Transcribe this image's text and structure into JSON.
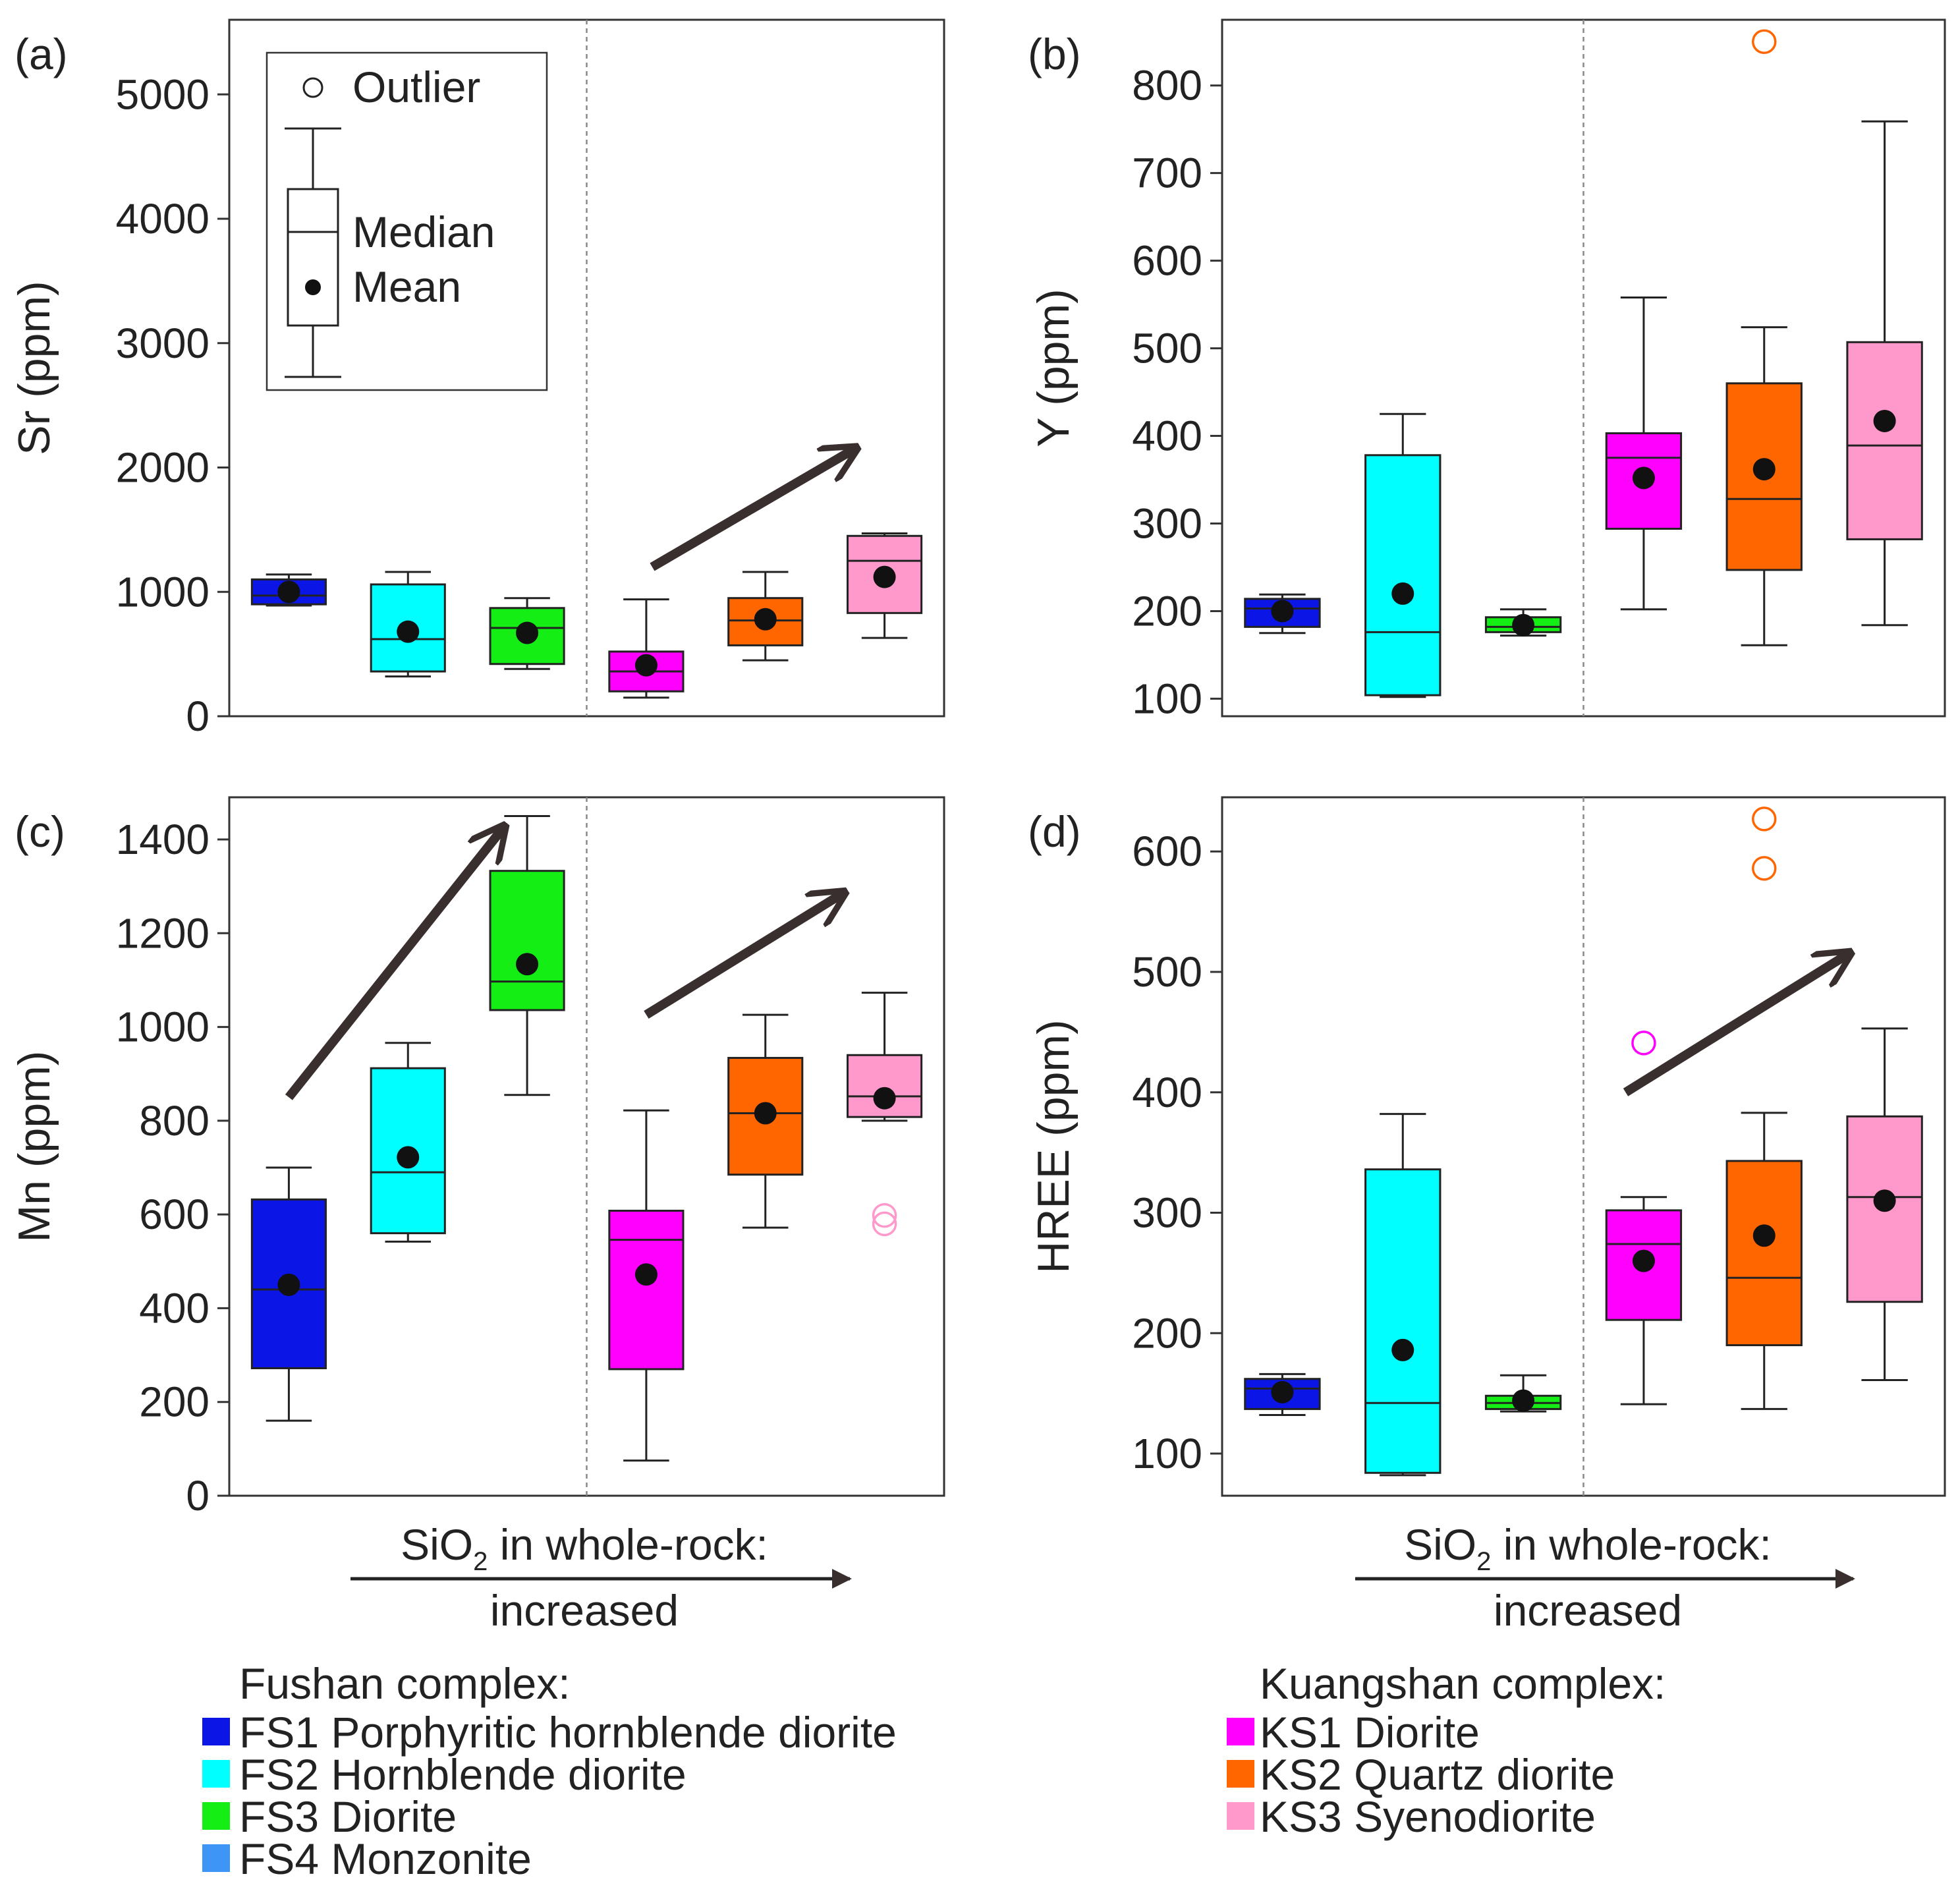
{
  "panels": [
    {
      "label": "(a)",
      "ylabel": "Sr (ppm)",
      "ylim": [
        0,
        5600
      ],
      "yticks": [
        0,
        1000,
        2000,
        3000,
        4000,
        5000
      ],
      "show_legend": true,
      "boxes": [
        {
          "group": "FS1",
          "min": 890,
          "q1": 900,
          "median": 970,
          "q3": 1100,
          "max": 1140,
          "mean": 1000
        },
        {
          "group": "FS2",
          "min": 320,
          "q1": 360,
          "median": 620,
          "q3": 1060,
          "max": 1160,
          "mean": 680
        },
        {
          "group": "FS3",
          "min": 380,
          "q1": 420,
          "median": 710,
          "q3": 870,
          "max": 950,
          "mean": 670
        },
        {
          "group": "KS1",
          "min": 150,
          "q1": 200,
          "median": 360,
          "q3": 520,
          "max": 940,
          "mean": 410
        },
        {
          "group": "KS2",
          "min": 450,
          "q1": 570,
          "median": 770,
          "q3": 950,
          "max": 1160,
          "mean": 780
        },
        {
          "group": "KS3",
          "min": 630,
          "q1": 830,
          "median": 1250,
          "q3": 1450,
          "max": 1470,
          "mean": 1120
        }
      ],
      "outliers": [],
      "trend_arrows": [
        {
          "from": [
            3.55,
            1200
          ],
          "to": [
            5.25,
            2150
          ]
        }
      ]
    },
    {
      "label": "(b)",
      "ylabel": "Y (ppm)",
      "ylim": [
        80,
        875
      ],
      "yticks": [
        100,
        200,
        300,
        400,
        500,
        600,
        700,
        800
      ],
      "show_legend": false,
      "boxes": [
        {
          "group": "FS1",
          "min": 175,
          "q1": 182,
          "median": 203,
          "q3": 214,
          "max": 219,
          "mean": 200
        },
        {
          "group": "FS2",
          "min": 102,
          "q1": 104,
          "median": 176,
          "q3": 378,
          "max": 425,
          "mean": 220
        },
        {
          "group": "FS3",
          "min": 172,
          "q1": 176,
          "median": 182,
          "q3": 193,
          "max": 202,
          "mean": 184
        },
        {
          "group": "KS1",
          "min": 202,
          "q1": 294,
          "median": 375,
          "q3": 403,
          "max": 558,
          "mean": 352
        },
        {
          "group": "KS2",
          "min": 161,
          "q1": 247,
          "median": 328,
          "q3": 460,
          "max": 524,
          "mean": 362
        },
        {
          "group": "KS3",
          "min": 184,
          "q1": 282,
          "median": 389,
          "q3": 507,
          "max": 759,
          "mean": 417
        }
      ],
      "outliers": [
        {
          "group": "KS2",
          "value": 850
        }
      ],
      "trend_arrows": []
    },
    {
      "label": "(c)",
      "ylabel": "Mn (ppm)",
      "ylim": [
        0,
        1490
      ],
      "yticks": [
        0,
        200,
        400,
        600,
        800,
        1000,
        1200,
        1400
      ],
      "show_legend": false,
      "boxes": [
        {
          "group": "FS1",
          "min": 160,
          "q1": 272,
          "median": 440,
          "q3": 632,
          "max": 700,
          "mean": 450
        },
        {
          "group": "FS2",
          "min": 542,
          "q1": 560,
          "median": 690,
          "q3": 912,
          "max": 966,
          "mean": 722
        },
        {
          "group": "FS3",
          "min": 855,
          "q1": 1036,
          "median": 1097,
          "q3": 1333,
          "max": 1450,
          "mean": 1134
        },
        {
          "group": "KS1",
          "min": 75,
          "q1": 270,
          "median": 546,
          "q3": 608,
          "max": 822,
          "mean": 472
        },
        {
          "group": "KS2",
          "min": 572,
          "q1": 685,
          "median": 816,
          "q3": 934,
          "max": 1026,
          "mean": 816
        },
        {
          "group": "KS3",
          "min": 800,
          "q1": 808,
          "median": 852,
          "q3": 940,
          "max": 1073,
          "mean": 848
        }
      ],
      "outliers": [
        {
          "group": "KS3",
          "value": 598
        },
        {
          "group": "KS3",
          "value": 580
        }
      ],
      "trend_arrows": [
        {
          "from": [
            0.5,
            850
          ],
          "to": [
            2.3,
            1425
          ]
        },
        {
          "from": [
            3.5,
            1026
          ],
          "to": [
            5.15,
            1285
          ]
        }
      ]
    },
    {
      "label": "(d)",
      "ylabel": "HREE (ppm)",
      "ylim": [
        65,
        645
      ],
      "yticks": [
        100,
        200,
        300,
        400,
        500,
        600
      ],
      "show_legend": false,
      "boxes": [
        {
          "group": "FS1",
          "min": 132,
          "q1": 137,
          "median": 154,
          "q3": 162,
          "max": 166,
          "mean": 151
        },
        {
          "group": "FS2",
          "min": 82,
          "q1": 84,
          "median": 142,
          "q3": 336,
          "max": 382,
          "mean": 186
        },
        {
          "group": "FS3",
          "min": 135,
          "q1": 137,
          "median": 142,
          "q3": 148,
          "max": 165,
          "mean": 144
        },
        {
          "group": "KS1",
          "min": 141,
          "q1": 211,
          "median": 274,
          "q3": 302,
          "max": 313,
          "mean": 260
        },
        {
          "group": "KS2",
          "min": 137,
          "q1": 190,
          "median": 246,
          "q3": 343,
          "max": 383,
          "mean": 281
        },
        {
          "group": "KS3",
          "min": 161,
          "q1": 226,
          "median": 313,
          "q3": 380,
          "max": 453,
          "mean": 310
        }
      ],
      "outliers": [
        {
          "group": "KS1",
          "value": 441
        },
        {
          "group": "KS2",
          "value": 627
        },
        {
          "group": "KS2",
          "value": 586
        }
      ],
      "trend_arrows": [
        {
          "from": [
            3.35,
            400
          ],
          "to": [
            5.2,
            515
          ]
        }
      ]
    }
  ],
  "legend_box": {
    "outlier_label": "Outlier",
    "median_label": "Median",
    "mean_label": "Mean"
  },
  "sio2_label": {
    "prefix": "SiO",
    "subscript": "2",
    "suffix": " in whole-rock:",
    "line2": "increased"
  },
  "groups": [
    {
      "id": "FS1",
      "color": "#0B16E6"
    },
    {
      "id": "FS2",
      "color": "#00FFFF"
    },
    {
      "id": "FS3",
      "color": "#14EE14"
    },
    {
      "id": "KS1",
      "color": "#FF00FF"
    },
    {
      "id": "KS2",
      "color": "#FF6600"
    },
    {
      "id": "KS3",
      "color": "#FF99CC"
    }
  ],
  "legend": {
    "fushan_title": "Fushan complex:",
    "kuangshan_title": "Kuangshan complex:",
    "fushan_items": [
      {
        "label": "FS1 Porphyritic hornblende diorite",
        "color": "#0B16E6"
      },
      {
        "label": "FS2 Hornblende diorite",
        "color": "#00FFFF"
      },
      {
        "label": "FS3 Diorite",
        "color": "#14EE14"
      },
      {
        "label": "FS4 Monzonite",
        "color": "#3D96F5"
      }
    ],
    "kuangshan_items": [
      {
        "label": "KS1 Diorite",
        "color": "#FF00FF"
      },
      {
        "label": "KS2 Quartz diorite",
        "color": "#FF6600"
      },
      {
        "label": "KS3 Syenodiorite",
        "color": "#FF99CC"
      }
    ]
  },
  "chart_data": [
    {
      "type": "box",
      "ylabel": "Sr (ppm)",
      "ylim": [
        0,
        5600
      ],
      "categories": [
        "FS1",
        "FS2",
        "FS3",
        "KS1",
        "KS2",
        "KS3"
      ],
      "series": [
        {
          "stat": "min",
          "values": [
            890,
            320,
            380,
            150,
            450,
            630
          ]
        },
        {
          "stat": "q1",
          "values": [
            900,
            360,
            420,
            200,
            570,
            830
          ]
        },
        {
          "stat": "median",
          "values": [
            970,
            620,
            710,
            360,
            770,
            1250
          ]
        },
        {
          "stat": "q3",
          "values": [
            1100,
            1060,
            870,
            520,
            950,
            1450
          ]
        },
        {
          "stat": "max",
          "values": [
            1140,
            1160,
            950,
            940,
            1160,
            1470
          ]
        },
        {
          "stat": "mean",
          "values": [
            1000,
            680,
            670,
            410,
            780,
            1120
          ]
        }
      ]
    },
    {
      "type": "box",
      "ylabel": "Y (ppm)",
      "ylim": [
        80,
        875
      ],
      "categories": [
        "FS1",
        "FS2",
        "FS3",
        "KS1",
        "KS2",
        "KS3"
      ],
      "series": [
        {
          "stat": "min",
          "values": [
            175,
            102,
            172,
            202,
            161,
            184
          ]
        },
        {
          "stat": "q1",
          "values": [
            182,
            104,
            176,
            294,
            247,
            282
          ]
        },
        {
          "stat": "median",
          "values": [
            203,
            176,
            182,
            375,
            328,
            389
          ]
        },
        {
          "stat": "q3",
          "values": [
            214,
            378,
            193,
            403,
            460,
            507
          ]
        },
        {
          "stat": "max",
          "values": [
            219,
            425,
            202,
            558,
            524,
            759
          ]
        },
        {
          "stat": "mean",
          "values": [
            200,
            220,
            184,
            352,
            362,
            417
          ]
        }
      ]
    },
    {
      "type": "box",
      "ylabel": "Mn (ppm)",
      "ylim": [
        0,
        1490
      ],
      "categories": [
        "FS1",
        "FS2",
        "FS3",
        "KS1",
        "KS2",
        "KS3"
      ],
      "series": [
        {
          "stat": "min",
          "values": [
            160,
            542,
            855,
            75,
            572,
            800
          ]
        },
        {
          "stat": "q1",
          "values": [
            272,
            560,
            1036,
            270,
            685,
            808
          ]
        },
        {
          "stat": "median",
          "values": [
            440,
            690,
            1097,
            546,
            816,
            852
          ]
        },
        {
          "stat": "q3",
          "values": [
            632,
            912,
            1333,
            608,
            934,
            940
          ]
        },
        {
          "stat": "max",
          "values": [
            700,
            966,
            1450,
            822,
            1026,
            1073
          ]
        },
        {
          "stat": "mean",
          "values": [
            450,
            722,
            1134,
            472,
            816,
            848
          ]
        }
      ]
    },
    {
      "type": "box",
      "ylabel": "HREE (ppm)",
      "ylim": [
        65,
        645
      ],
      "categories": [
        "FS1",
        "FS2",
        "FS3",
        "KS1",
        "KS2",
        "KS3"
      ],
      "series": [
        {
          "stat": "min",
          "values": [
            132,
            82,
            135,
            141,
            137,
            161
          ]
        },
        {
          "stat": "q1",
          "values": [
            137,
            84,
            137,
            211,
            190,
            226
          ]
        },
        {
          "stat": "median",
          "values": [
            154,
            142,
            142,
            274,
            246,
            313
          ]
        },
        {
          "stat": "q3",
          "values": [
            162,
            336,
            148,
            302,
            343,
            380
          ]
        },
        {
          "stat": "max",
          "values": [
            166,
            382,
            165,
            313,
            383,
            453
          ]
        },
        {
          "stat": "mean",
          "values": [
            151,
            186,
            144,
            260,
            281,
            310
          ]
        }
      ]
    }
  ]
}
